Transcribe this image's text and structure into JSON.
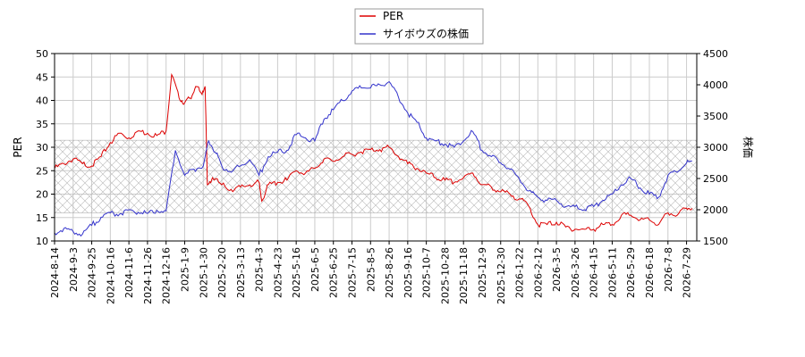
{
  "chart_data": {
    "type": "line",
    "grid": true,
    "legend_placement": "top-center",
    "left_axis": {
      "label": "PER",
      "ylim": [
        10,
        50
      ],
      "ticks": [
        10,
        15,
        20,
        25,
        30,
        35,
        40,
        45,
        50
      ]
    },
    "right_axis": {
      "label": "株価",
      "ylim": [
        1500,
        4500
      ],
      "ticks": [
        1500,
        2000,
        2500,
        3000,
        3500,
        4000,
        4500
      ]
    },
    "band": {
      "axis": "left",
      "range": [
        16,
        31.5
      ]
    },
    "x_tick_labels": [
      "2024-8-14",
      "2024-9-3",
      "2024-9-25",
      "2024-10-16",
      "2024-11-6",
      "2024-11-26",
      "2024-12-16",
      "2025-1-9",
      "2025-1-30",
      "2025-2-20",
      "2025-3-13",
      "2025-4-3",
      "2025-4-23",
      "2025-5-16",
      "2025-6-5",
      "2025-6-25",
      "2025-7-15",
      "2025-8-5",
      "2025-8-26",
      "2025-9-16",
      "2025-10-7",
      "2025-10-28",
      "2025-11-18",
      "2025-12-9",
      "2025-12-30",
      "2026-1-22",
      "2026-2-12",
      "2026-3-5",
      "2026-3-26",
      "2026-4-15",
      "2026-5-11",
      "2026-5-29",
      "2026-6-18",
      "2026-7-8",
      "2026-7-29"
    ],
    "series": [
      {
        "name": "PER",
        "axis": "left",
        "color": "#dd0000",
        "values": [
          [
            0,
            25.5
          ],
          [
            0.5,
            26.5
          ],
          [
            1,
            27.5
          ],
          [
            1.5,
            26.5
          ],
          [
            2,
            26
          ],
          [
            2.5,
            28
          ],
          [
            3,
            31
          ],
          [
            3.5,
            33
          ],
          [
            4,
            32
          ],
          [
            4.5,
            33.5
          ],
          [
            5,
            33
          ],
          [
            5.5,
            32.5
          ],
          [
            6,
            33.5
          ],
          [
            6.3,
            45.5
          ],
          [
            6.7,
            40.5
          ],
          [
            7,
            39.5
          ],
          [
            7.3,
            40.5
          ],
          [
            7.6,
            43
          ],
          [
            7.9,
            41.5
          ],
          [
            8.1,
            43
          ],
          [
            8.22,
            22
          ],
          [
            8.5,
            23.5
          ],
          [
            9,
            22
          ],
          [
            9.5,
            21
          ],
          [
            10,
            21.5
          ],
          [
            10.5,
            22
          ],
          [
            11,
            22.5
          ],
          [
            11.15,
            18.5
          ],
          [
            11.5,
            22
          ],
          [
            12,
            22.5
          ],
          [
            12.5,
            23
          ],
          [
            13,
            25
          ],
          [
            13.5,
            24.5
          ],
          [
            14,
            25.5
          ],
          [
            14.5,
            27.5
          ],
          [
            15,
            27
          ],
          [
            15.5,
            28
          ],
          [
            16,
            28.5
          ],
          [
            16.5,
            29
          ],
          [
            17,
            29.5
          ],
          [
            17.5,
            29.5
          ],
          [
            18,
            30
          ],
          [
            18.5,
            28
          ],
          [
            19,
            26.5
          ],
          [
            19.5,
            25.5
          ],
          [
            20,
            24.5
          ],
          [
            20.5,
            23.5
          ],
          [
            21,
            23
          ],
          [
            21.5,
            22.5
          ],
          [
            22,
            23.5
          ],
          [
            22.5,
            24.5
          ],
          [
            23,
            22
          ],
          [
            23.5,
            21.5
          ],
          [
            24,
            20.5
          ],
          [
            24.5,
            20
          ],
          [
            25,
            19
          ],
          [
            25.5,
            17.5
          ],
          [
            26,
            13.5
          ],
          [
            26.5,
            13.5
          ],
          [
            27,
            14
          ],
          [
            27.5,
            13
          ],
          [
            28,
            12.5
          ],
          [
            28.5,
            12.5
          ],
          [
            29,
            12.5
          ],
          [
            29.5,
            13.5
          ],
          [
            30,
            13.5
          ],
          [
            30.5,
            15.5
          ],
          [
            31,
            15.5
          ],
          [
            31.5,
            14.5
          ],
          [
            32,
            14.5
          ],
          [
            32.5,
            13.5
          ],
          [
            33,
            16
          ],
          [
            33.5,
            15.5
          ],
          [
            34,
            17
          ],
          [
            34.3,
            17
          ]
        ]
      },
      {
        "name": "サイボウズの株価",
        "axis": "right",
        "color": "#3333cc",
        "values": [
          [
            0,
            1630
          ],
          [
            0.5,
            1700
          ],
          [
            1,
            1650
          ],
          [
            1.5,
            1610
          ],
          [
            2,
            1750
          ],
          [
            2.5,
            1880
          ],
          [
            3,
            1950
          ],
          [
            3.5,
            1930
          ],
          [
            4,
            2000
          ],
          [
            4.5,
            1960
          ],
          [
            5,
            1940
          ],
          [
            5.5,
            1990
          ],
          [
            6,
            1980
          ],
          [
            6.5,
            2950
          ],
          [
            7,
            2550
          ],
          [
            7.5,
            2650
          ],
          [
            8,
            2700
          ],
          [
            8.3,
            3100
          ],
          [
            8.7,
            2900
          ],
          [
            9,
            2700
          ],
          [
            9.5,
            2600
          ],
          [
            10,
            2700
          ],
          [
            10.5,
            2800
          ],
          [
            11,
            2550
          ],
          [
            11.5,
            2850
          ],
          [
            12,
            2920
          ],
          [
            12.5,
            2950
          ],
          [
            13,
            3200
          ],
          [
            13.5,
            3150
          ],
          [
            14,
            3100
          ],
          [
            14.5,
            3450
          ],
          [
            15,
            3600
          ],
          [
            15.5,
            3750
          ],
          [
            16,
            3900
          ],
          [
            16.5,
            3950
          ],
          [
            17,
            3950
          ],
          [
            17.5,
            4000
          ],
          [
            18,
            4050
          ],
          [
            18.5,
            3800
          ],
          [
            19,
            3550
          ],
          [
            19.5,
            3400
          ],
          [
            20,
            3150
          ],
          [
            20.5,
            3100
          ],
          [
            21,
            3050
          ],
          [
            21.5,
            3000
          ],
          [
            22,
            3100
          ],
          [
            22.5,
            3250
          ],
          [
            23,
            2950
          ],
          [
            23.5,
            2850
          ],
          [
            24,
            2750
          ],
          [
            24.5,
            2650
          ],
          [
            25,
            2500
          ],
          [
            25.5,
            2300
          ],
          [
            26,
            2200
          ],
          [
            26.5,
            2150
          ],
          [
            27,
            2150
          ],
          [
            27.5,
            2050
          ],
          [
            28,
            2050
          ],
          [
            28.5,
            2000
          ],
          [
            29,
            2050
          ],
          [
            29.5,
            2150
          ],
          [
            30,
            2250
          ],
          [
            30.5,
            2400
          ],
          [
            31,
            2500
          ],
          [
            31.5,
            2350
          ],
          [
            32,
            2250
          ],
          [
            32.5,
            2200
          ],
          [
            33,
            2550
          ],
          [
            33.5,
            2600
          ],
          [
            34,
            2750
          ],
          [
            34.3,
            2780
          ]
        ]
      }
    ]
  }
}
